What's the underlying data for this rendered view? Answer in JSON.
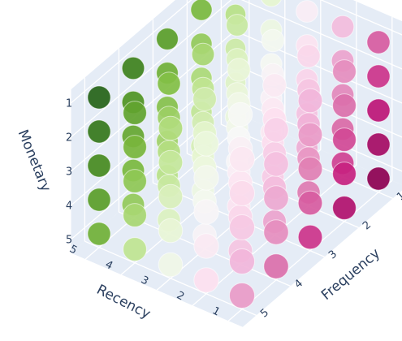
{
  "chart_data": {
    "type": "scatter3d",
    "title": "",
    "axes": {
      "x": {
        "label": "Frequency",
        "ticks": [
          "1",
          "2",
          "3",
          "4",
          "5"
        ],
        "range": [
          1,
          5
        ]
      },
      "y": {
        "label": "Recency",
        "ticks": [
          "1",
          "2",
          "3",
          "4",
          "5"
        ],
        "range": [
          1,
          5
        ]
      },
      "z": {
        "label": "Monetary",
        "ticks": [
          "1",
          "2",
          "3",
          "4",
          "5"
        ],
        "range": [
          1,
          5
        ],
        "reversed": true
      }
    },
    "colorscale": "PiYG",
    "color_rule": "score = 2*(6 - recency) - 0.9*(frequency - 1) + 0.6*(monetary - 3); higher = more magenta, lower = more green",
    "points": "all 125 combinations of frequency 1-5, recency 1-5, monetary 1-5",
    "grid": true,
    "background": "#e5ecf6"
  }
}
